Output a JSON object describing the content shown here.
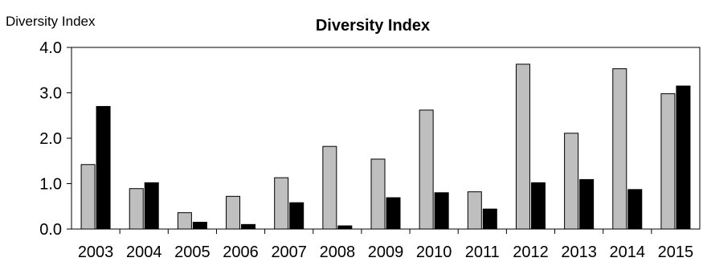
{
  "chart_data": {
    "type": "bar",
    "title": "Diversity Index",
    "ylabel": "Diversity Index",
    "xlabel": "",
    "categories": [
      "2003",
      "2004",
      "2005",
      "2006",
      "2007",
      "2008",
      "2009",
      "2010",
      "2011",
      "2012",
      "2013",
      "2014",
      "2015"
    ],
    "series": [
      {
        "color": "#bfbfbf",
        "values": [
          1.42,
          0.89,
          0.36,
          0.72,
          1.13,
          1.82,
          1.54,
          2.62,
          0.82,
          3.63,
          2.11,
          3.53,
          2.98
        ]
      },
      {
        "color": "#000000",
        "values": [
          2.7,
          1.02,
          0.15,
          0.1,
          0.58,
          0.07,
          0.69,
          0.8,
          0.44,
          1.02,
          1.09,
          0.87,
          3.15
        ]
      }
    ],
    "ylim": [
      0,
      4
    ],
    "yticks": [
      "0.0",
      "1.0",
      "2.0",
      "3.0",
      "4.0"
    ],
    "grid": false,
    "legend": "none"
  }
}
